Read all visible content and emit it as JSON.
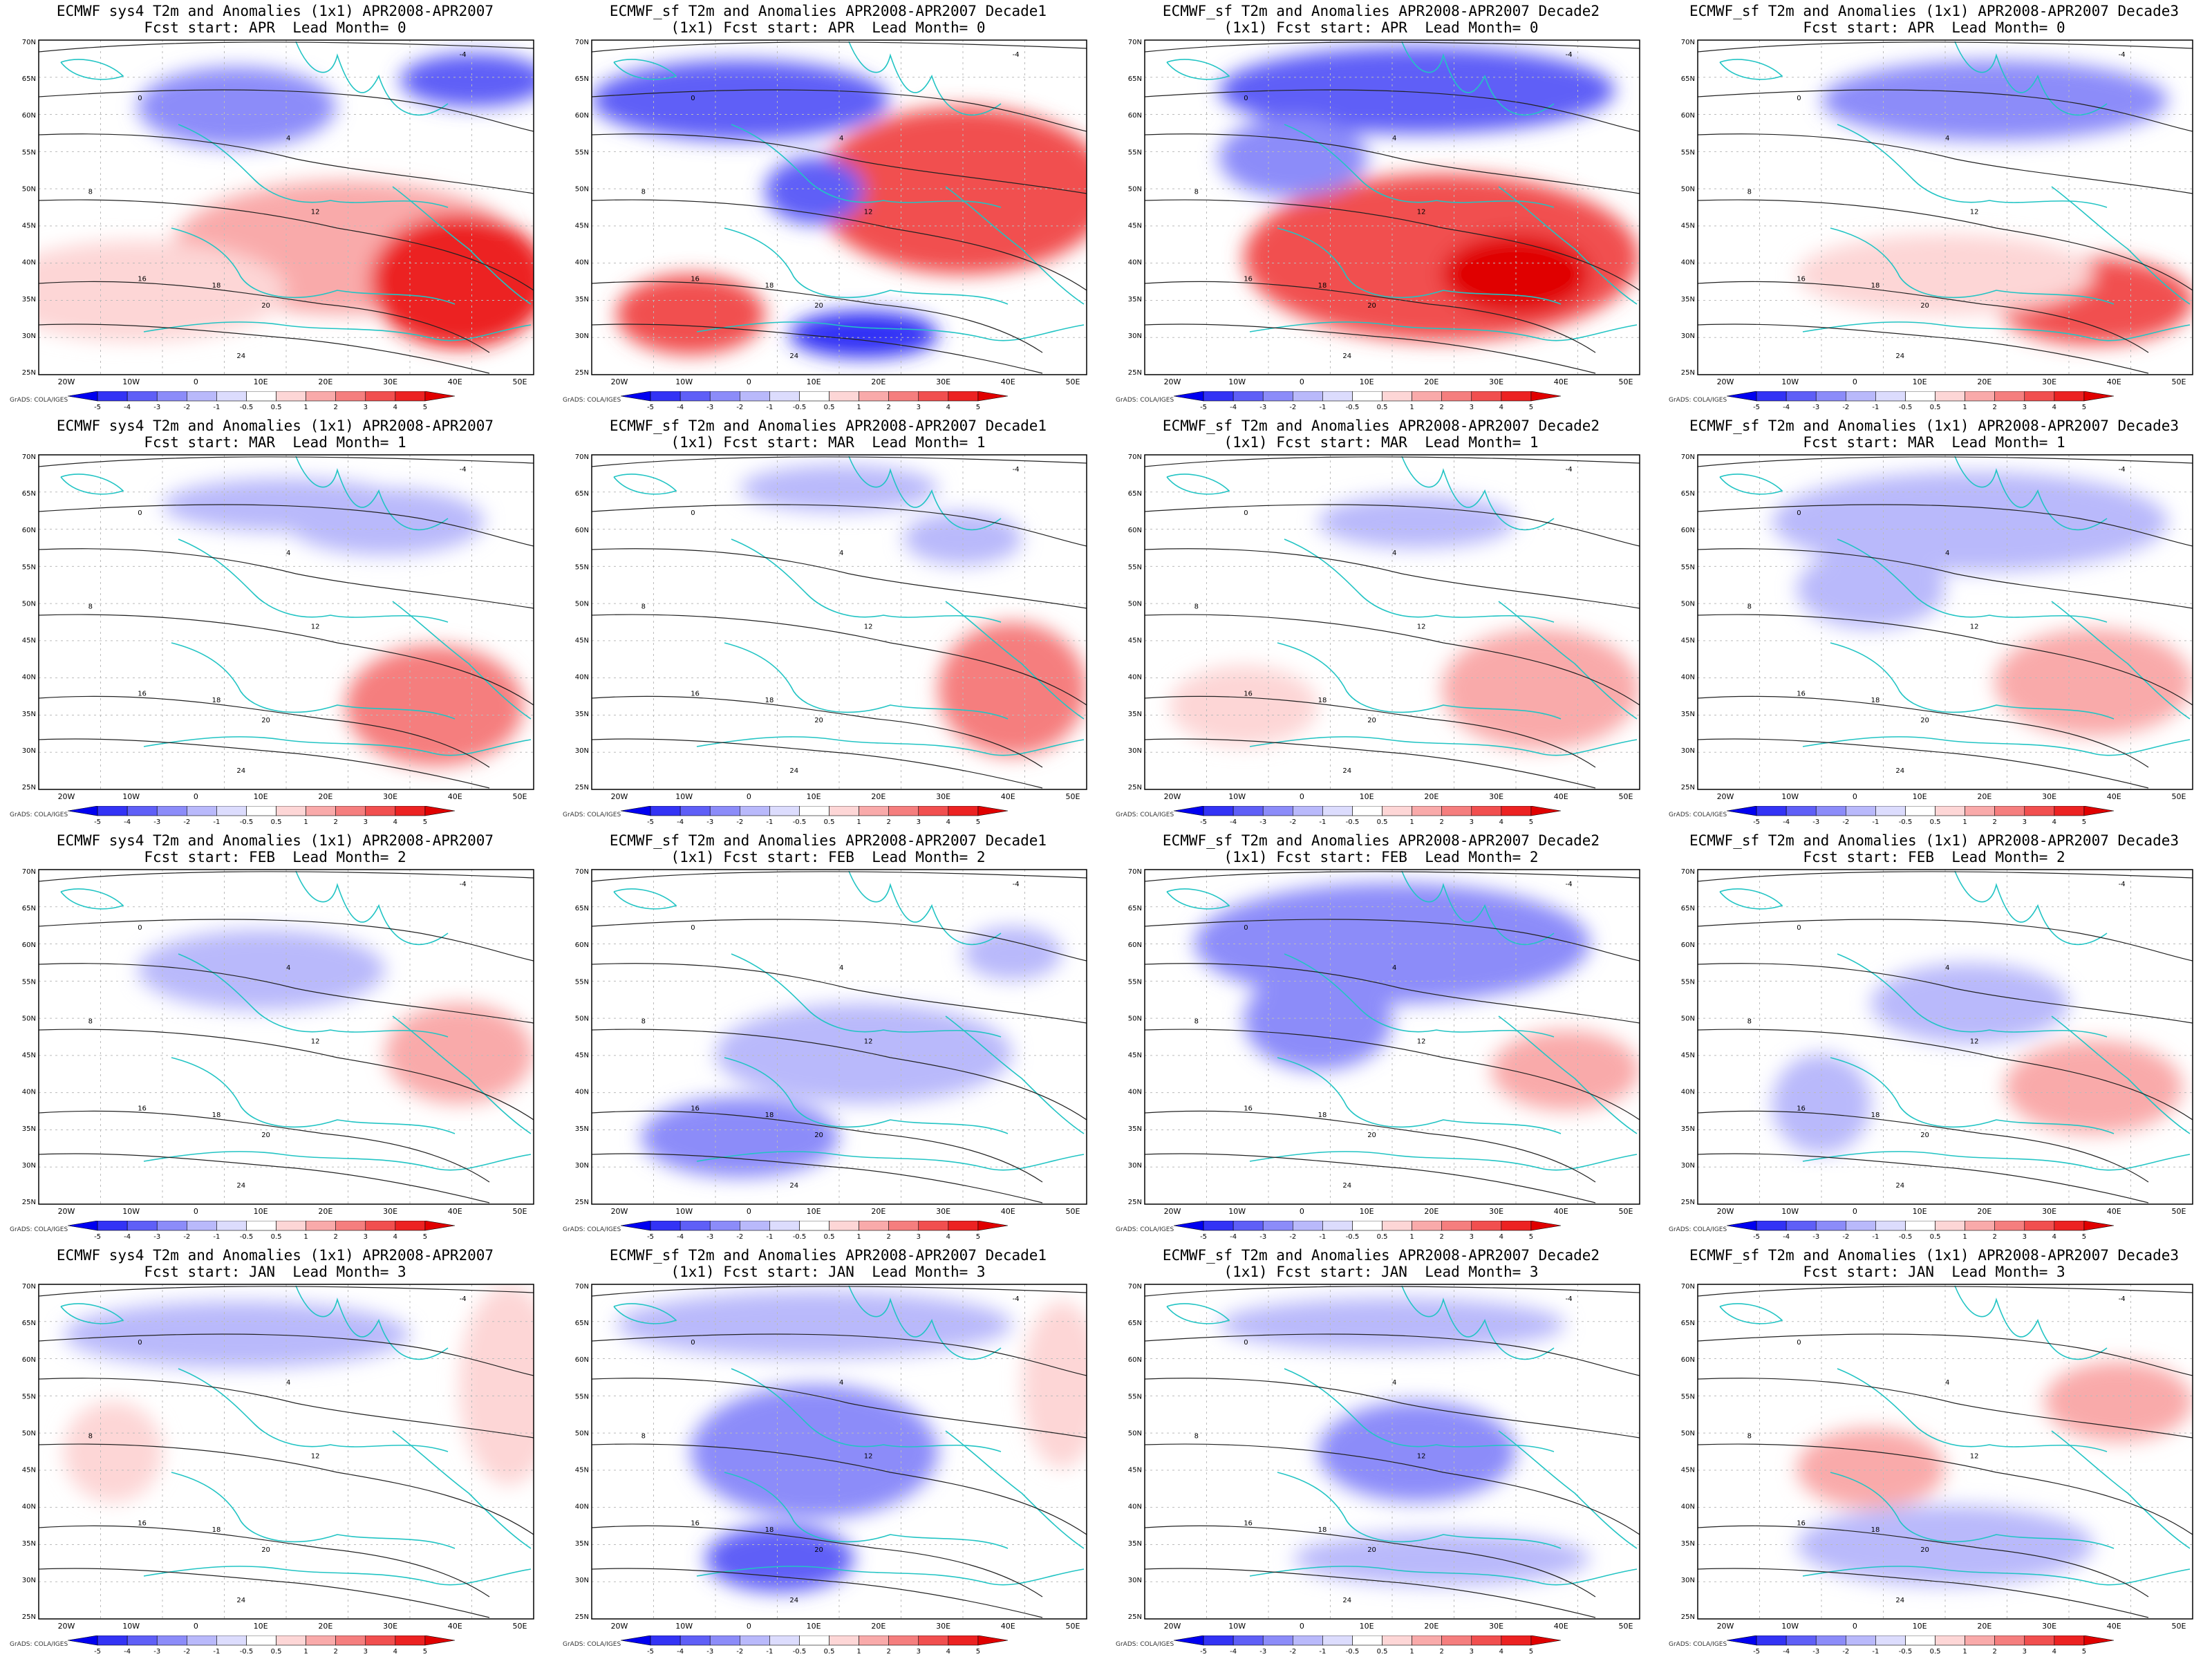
{
  "credit": "GrADS: COLA/IGES",
  "x_ticks": [
    "20W",
    "10W",
    "0",
    "10E",
    "20E",
    "30E",
    "40E",
    "50E"
  ],
  "y_ticks": [
    "70N",
    "65N",
    "60N",
    "55N",
    "50N",
    "45N",
    "40N",
    "35N",
    "30N",
    "25N"
  ],
  "colorbar": {
    "levels": [
      "-5",
      "-4",
      "-3",
      "-2",
      "-1",
      "-0.5",
      "0.5",
      "1",
      "2",
      "3",
      "4",
      "5"
    ],
    "colors": [
      "#0000f0",
      "#3333f5",
      "#5f5ff7",
      "#8c8cf9",
      "#b9b9fb",
      "#dcdcfd",
      "#ffffff",
      "#fdd6d6",
      "#f9aaaa",
      "#f57e7e",
      "#f14f4f",
      "#ec2222",
      "#e00000"
    ]
  },
  "contour_labels": [
    "-4",
    "0",
    "4",
    "8",
    "12",
    "16",
    "18",
    "20",
    "24"
  ],
  "panels": [
    {
      "title1": "ECMWF sys4 T2m and Anomalies (1x1) APR2008-APR2007",
      "title2": "Fcst start: APR  Lead Month= 0"
    },
    {
      "title1": "ECMWF_sf T2m and Anomalies APR2008-APR2007 Decade1",
      "title2": "(1x1) Fcst start: APR  Lead Month= 0"
    },
    {
      "title1": "ECMWF_sf T2m and Anomalies APR2008-APR2007 Decade2",
      "title2": "(1x1) Fcst start: APR  Lead Month= 0"
    },
    {
      "title1": "ECMWF_sf T2m and Anomalies (1x1) APR2008-APR2007 Decade3",
      "title2": "Fcst start: APR  Lead Month= 0"
    },
    {
      "title1": "ECMWF sys4 T2m and Anomalies (1x1) APR2008-APR2007",
      "title2": "Fcst start: MAR  Lead Month= 1"
    },
    {
      "title1": "ECMWF_sf T2m and Anomalies APR2008-APR2007 Decade1",
      "title2": "(1x1) Fcst start: MAR  Lead Month= 1"
    },
    {
      "title1": "ECMWF_sf T2m and Anomalies APR2008-APR2007 Decade2",
      "title2": "(1x1) Fcst start: MAR  Lead Month= 1"
    },
    {
      "title1": "ECMWF_sf T2m and Anomalies (1x1) APR2008-APR2007 Decade3",
      "title2": "Fcst start: MAR  Lead Month= 1"
    },
    {
      "title1": "ECMWF sys4 T2m and Anomalies (1x1) APR2008-APR2007",
      "title2": "Fcst start: FEB  Lead Month= 2"
    },
    {
      "title1": "ECMWF_sf T2m and Anomalies APR2008-APR2007 Decade1",
      "title2": "(1x1) Fcst start: FEB  Lead Month= 2"
    },
    {
      "title1": "ECMWF_sf T2m and Anomalies APR2008-APR2007 Decade2",
      "title2": "(1x1) Fcst start: FEB  Lead Month= 2"
    },
    {
      "title1": "ECMWF_sf T2m and Anomalies (1x1) APR2008-APR2007 Decade3",
      "title2": "Fcst start: FEB  Lead Month= 2"
    },
    {
      "title1": "ECMWF sys4 T2m and Anomalies (1x1) APR2008-APR2007",
      "title2": "Fcst start: JAN  Lead Month= 3"
    },
    {
      "title1": "ECMWF_sf T2m and Anomalies APR2008-APR2007 Decade1",
      "title2": "(1x1) Fcst start: JAN  Lead Month= 3"
    },
    {
      "title1": "ECMWF_sf T2m and Anomalies APR2008-APR2007 Decade2",
      "title2": "(1x1) Fcst start: JAN  Lead Month= 3"
    },
    {
      "title1": "ECMWF_sf T2m and Anomalies (1x1) APR2008-APR2007 Decade3",
      "title2": "Fcst start: JAN  Lead Month= 3"
    }
  ]
}
